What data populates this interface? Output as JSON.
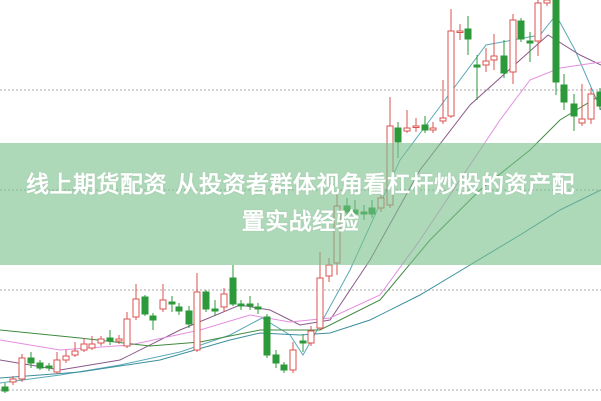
{
  "article": {
    "title": "线上期货配资 从投资者群体视角看杠杆炒股的资产配置实战经验"
  },
  "chart": {
    "type": "candlestick",
    "grid": "dotted horizontal",
    "colors": {
      "up": "#d9534f",
      "down": "#2c9a3a",
      "banner": "#78c08a"
    }
  }
}
